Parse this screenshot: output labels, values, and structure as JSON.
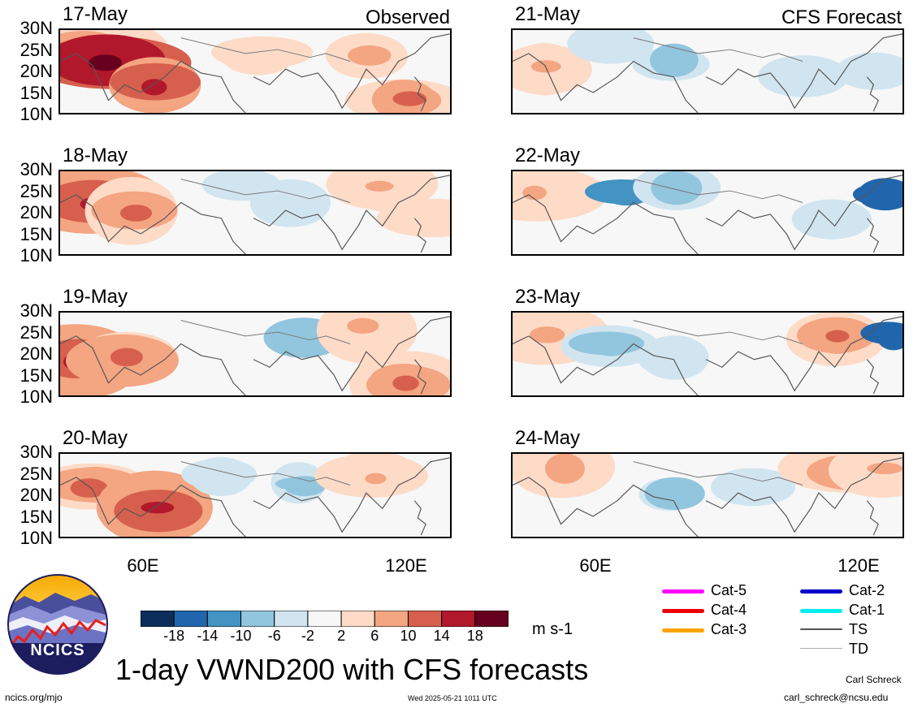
{
  "observed_label": "Observed",
  "forecast_label": "CFS Forecast",
  "y_ticks": [
    "30N",
    "25N",
    "20N",
    "15N",
    "10N"
  ],
  "x_ticks": [
    "60E",
    "120E"
  ],
  "observed_panels": [
    {
      "date": "17-May"
    },
    {
      "date": "18-May"
    },
    {
      "date": "19-May"
    },
    {
      "date": "20-May"
    }
  ],
  "forecast_panels": [
    {
      "date": "21-May"
    },
    {
      "date": "22-May"
    },
    {
      "date": "23-May"
    },
    {
      "date": "24-May"
    }
  ],
  "colorbar": {
    "labels": [
      "-18",
      "-14",
      "-10",
      "-6",
      "-2",
      "2",
      "6",
      "10",
      "14",
      "18"
    ],
    "colors": [
      "#0b2e5c",
      "#2166ac",
      "#4393c3",
      "#92c5de",
      "#d1e5f0",
      "#f7f7f7",
      "#fddbc7",
      "#f4a582",
      "#d6604d",
      "#b2182b",
      "#67001f"
    ],
    "unit": "m s-1"
  },
  "legend": {
    "items": [
      {
        "label": "Cat-5",
        "color": "#ff00ff"
      },
      {
        "label": "Cat-4",
        "color": "#ee0000"
      },
      {
        "label": "Cat-3",
        "color": "#ffa500"
      },
      {
        "label": "Cat-2",
        "color": "#0000cc"
      },
      {
        "label": "Cat-1",
        "color": "#00eeee"
      },
      {
        "label": "TS",
        "color": "#555555"
      },
      {
        "label": "TD",
        "color": "#aaaaaa"
      }
    ]
  },
  "logo_text": "NCICS",
  "title": "1-day VWND200 with CFS forecasts",
  "footer": {
    "url": "ncics.org/mjo",
    "timestamp": "Wed 2025-05-21 1011 UTC",
    "author": "Carl Schreck",
    "email": "carl_schreck@ncsu.edu"
  }
}
